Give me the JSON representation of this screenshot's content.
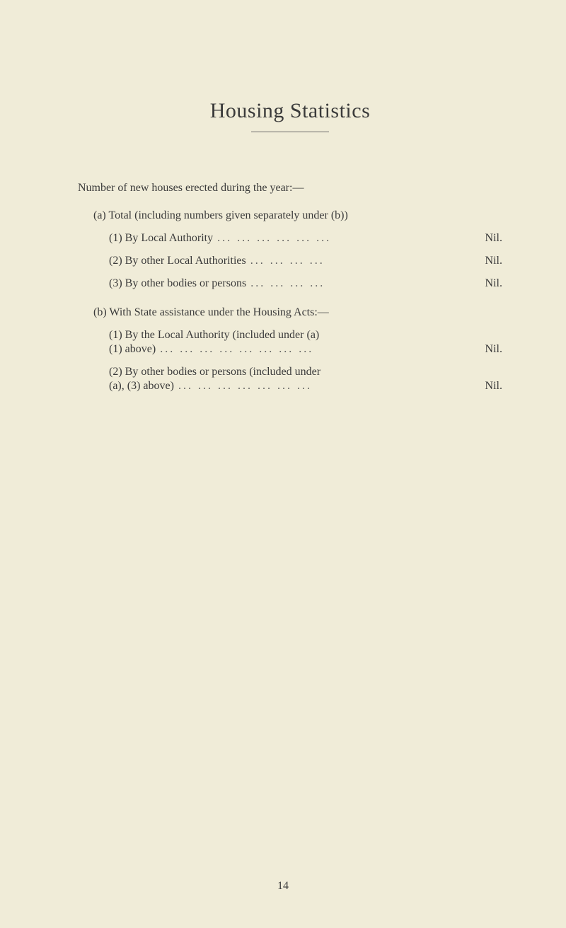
{
  "title": "Housing Statistics",
  "intro": "Number of new houses erected during the year:—",
  "section_a": {
    "label": "(a) Total (including numbers given separately under (b))",
    "items": [
      {
        "num": "(1)",
        "text": "By Local Authority",
        "dots": "... ... ... ... ... ...",
        "value": "Nil."
      },
      {
        "num": "(2)",
        "text": "By other Local Authorities",
        "dots": "... ... ... ...",
        "value": "Nil."
      },
      {
        "num": "(3)",
        "text": "By other bodies or persons",
        "dots": "... ... ... ...",
        "value": "Nil."
      }
    ]
  },
  "section_b": {
    "label": "(b) With State assistance under the Housing Acts:—",
    "items": [
      {
        "num": "(1)",
        "line1": "By the Local Authority (included under (a)",
        "line2": "(1) above)",
        "dots": "... ... ... ... ... ... ... ...",
        "value": "Nil."
      },
      {
        "num": "(2)",
        "line1": "By other bodies or persons (included under",
        "line2": "(a), (3) above)",
        "dots": "... ... ... ... ... ... ...",
        "value": "Nil."
      }
    ]
  },
  "page_number": "14",
  "colors": {
    "background": "#f0ecd8",
    "text": "#3a3a3a"
  }
}
